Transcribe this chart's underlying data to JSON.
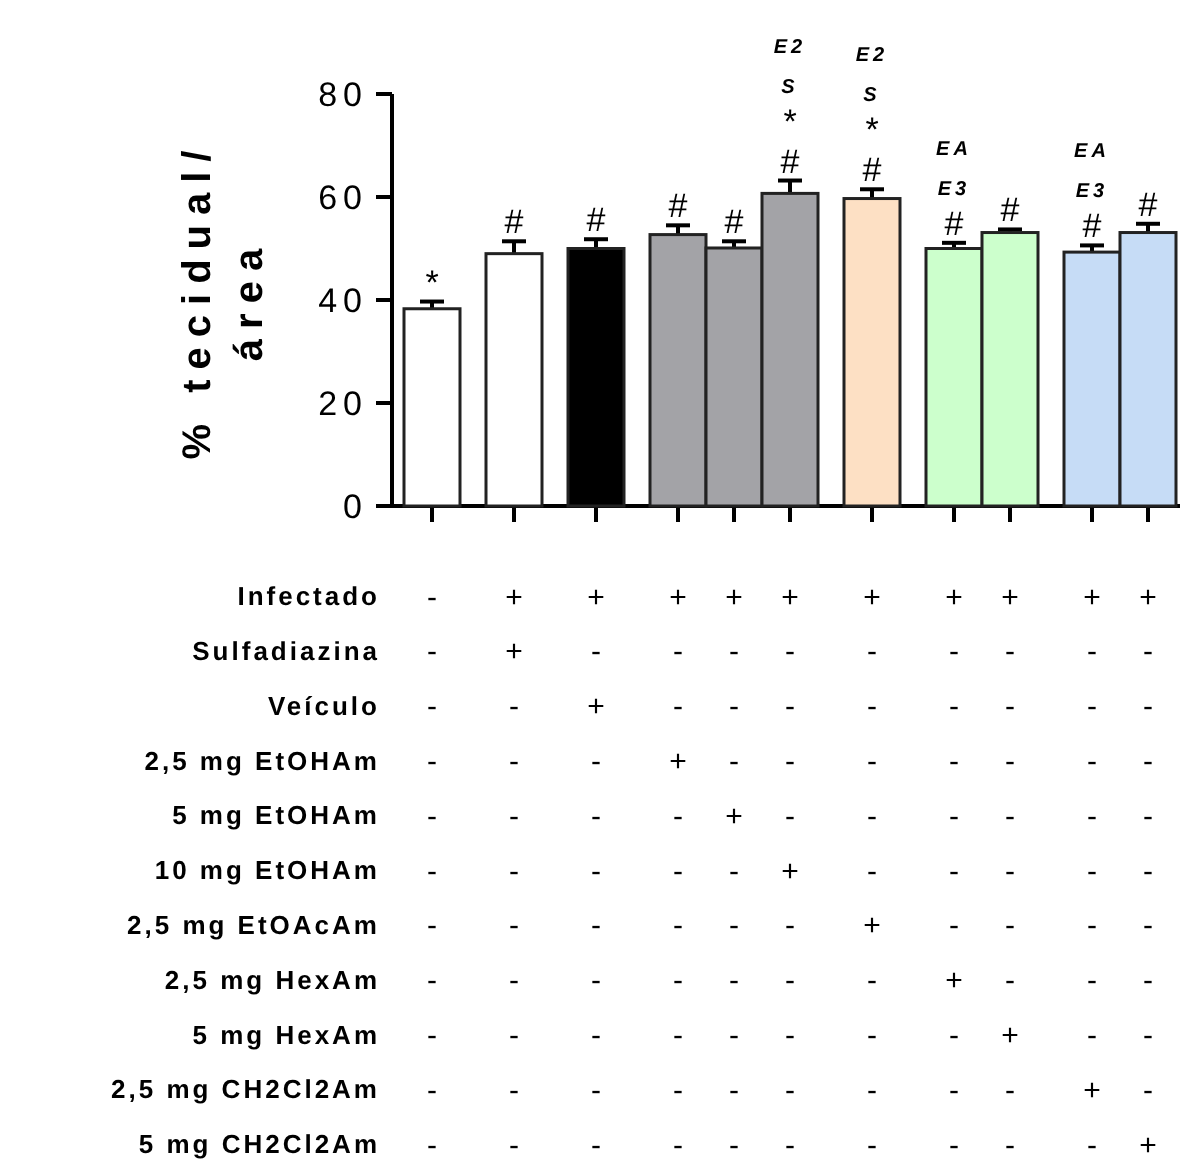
{
  "chart_data": {
    "type": "bar",
    "ylabel": "% tecidual/\nárea",
    "categories": [
      null,
      null,
      null,
      null,
      null,
      null,
      null,
      null,
      null,
      null,
      null
    ],
    "values": [
      38.3,
      49.0,
      50.0,
      52.7,
      50.1,
      60.7,
      59.7,
      50.0,
      53.1,
      49.3,
      53.1
    ],
    "errors": [
      1.4,
      2.4,
      1.8,
      1.8,
      1.3,
      2.5,
      1.8,
      1.1,
      0.6,
      1.3,
      1.7
    ],
    "colors": [
      "#ffffff",
      "#ffffff",
      "#000000",
      "#a3a3a7",
      "#a3a3a7",
      "#a3a3a7",
      "#fde0c4",
      "#ccffcc",
      "#ccffcc",
      "#c6dcf6",
      "#c6dcf6"
    ],
    "value_labels": [
      "*",
      "#",
      "#",
      "#",
      "#",
      "E2\nS\n*\n#",
      "E2\nS\n*\n#",
      "EA\nE3\n#",
      "#",
      "EA\nE3\n#",
      "#"
    ],
    "ylim": [
      0,
      80
    ],
    "yticks": [
      0,
      20,
      40,
      60,
      80
    ],
    "grid": false,
    "annotations": [
      "Infectado - + + + + + + + + + +",
      "Sulfadiazina - + - - - - - - - - -",
      "Veículo - - + - - - - - - - -",
      "2,5 mg EtOHAm - - - + - - - - - - -",
      "5 mg EtOHAm - - - - + - - - - - -",
      "10 mg EtOHAm - - - - - + - - - - -",
      "2,5 mg EtOAcAm - - - - - - + - - - -",
      "2,5 mg HexAm - - - - - - - + - - -",
      "5 mg HexAm - - - - - - - - + - -",
      "2,5 mg CH2Cl2Am - - - - - - - - - + -",
      "5 mg CH2Cl2Am - - - - - - - - - - +"
    ]
  }
}
